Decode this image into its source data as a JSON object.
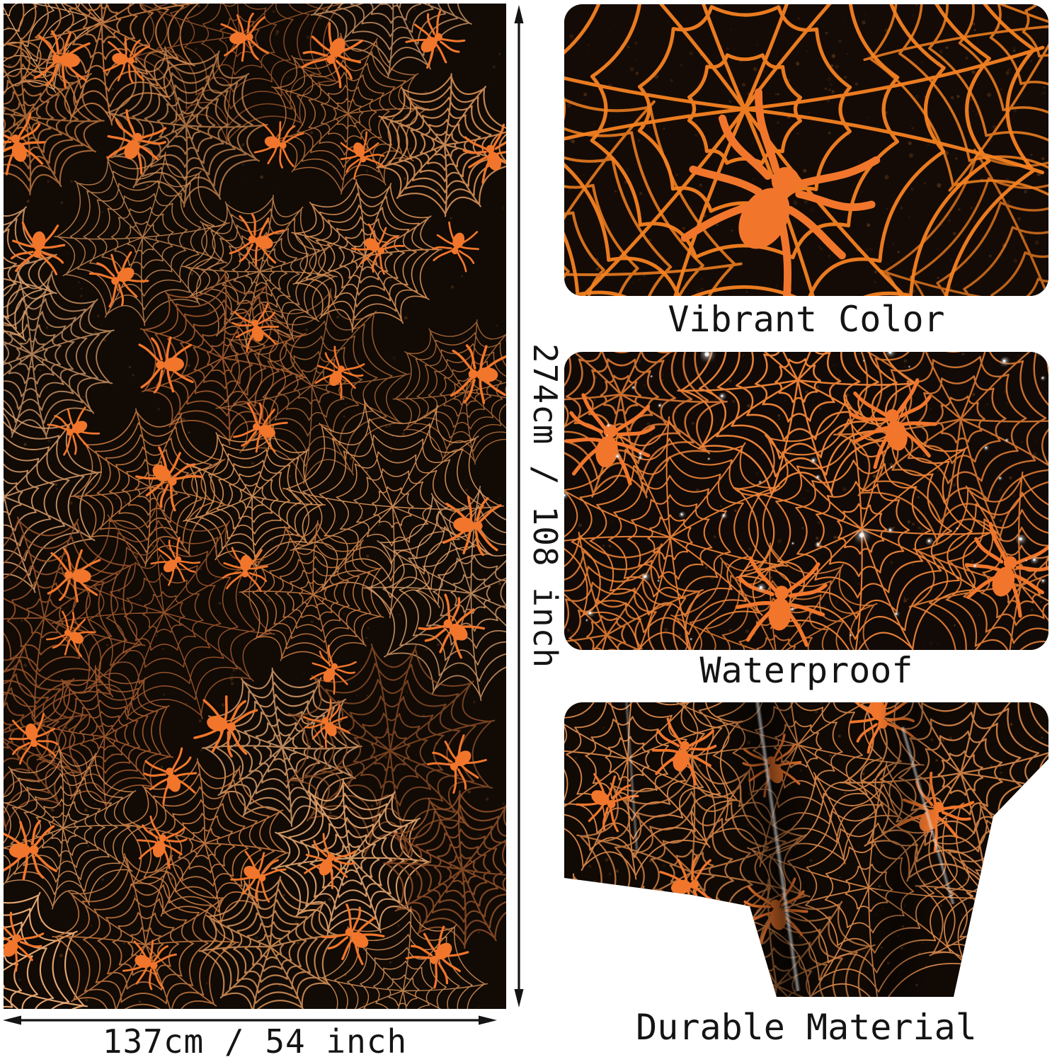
{
  "product": {
    "description": "Halloween black and orange spider web tablecloth product infographic"
  },
  "dimensions": {
    "height_label": "274cm / 108 inch",
    "width_label": "137cm / 54 inch"
  },
  "features": [
    {
      "id": "vibrant-color",
      "caption": "Vibrant Color"
    },
    {
      "id": "waterproof",
      "caption": "Waterproof"
    },
    {
      "id": "durable-material",
      "caption": "Durable Material"
    }
  ],
  "icons": {
    "vertical_arrow": "double-headed-arrow",
    "horizontal_arrow": "double-headed-arrow"
  },
  "colors": {
    "page_background": "#ffffff",
    "cloth_background": "#110a05",
    "web_copper": "#c0763f",
    "web_copper_light": "#e5a671",
    "web_copper_dark": "#96532a",
    "web_copper_mid": "#d18d55",
    "web_bright_orange": "#f58222",
    "web_panel2": "#ea8238",
    "web_panel3": "#cf8146",
    "spider_orange": "#f1762c",
    "speckle_brown": "#8a5526",
    "text": "#141414",
    "arrow": "#141414"
  }
}
